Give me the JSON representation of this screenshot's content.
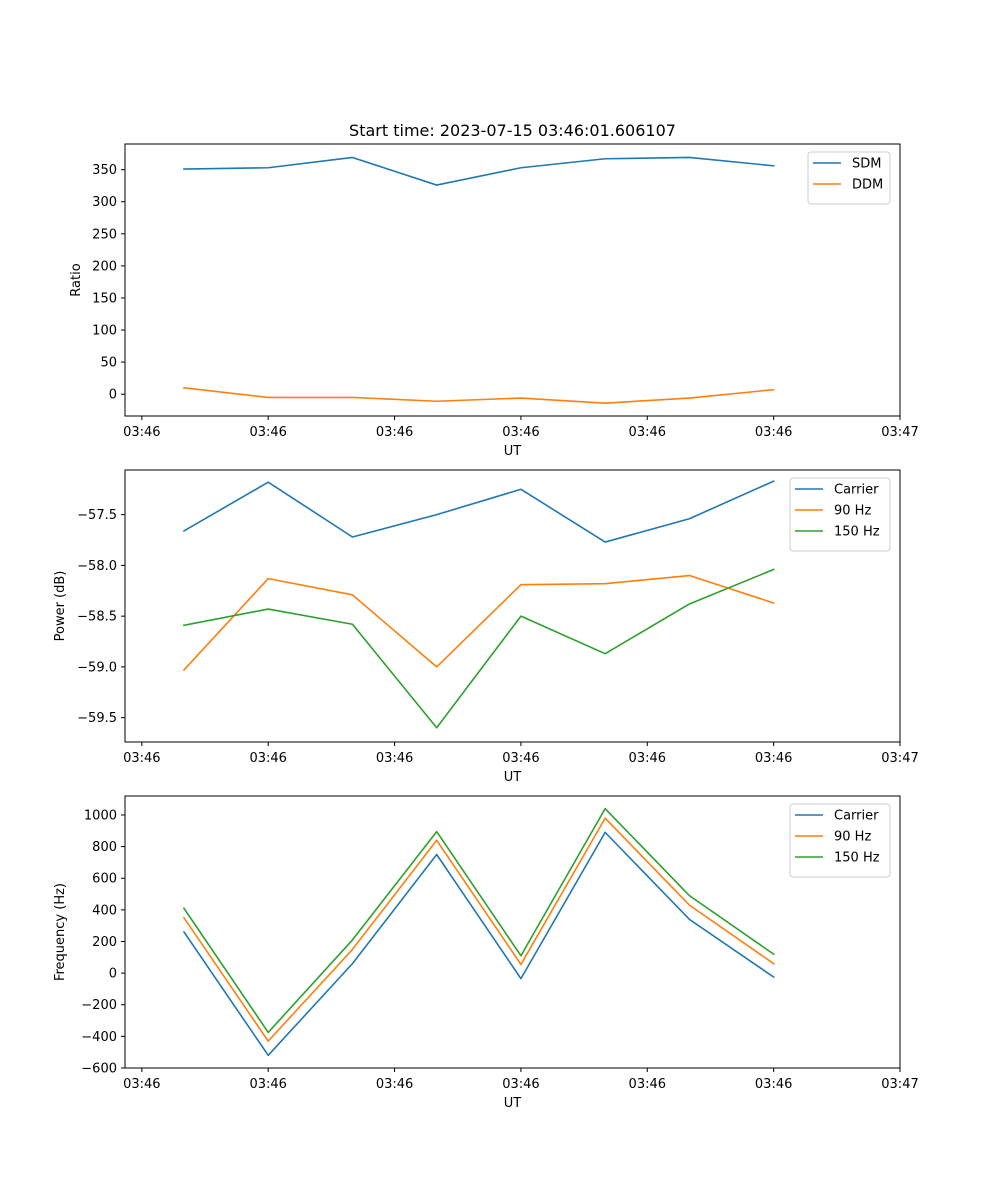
{
  "title": "Start time: 2023-07-15 03:46:01.606107",
  "chart_data": [
    {
      "type": "line",
      "title": "Start time: 2023-07-15 03:46:01.606107",
      "xlabel": "UT",
      "ylabel": "Ratio",
      "x": [
        1,
        2,
        3,
        4,
        5,
        6,
        7,
        8
      ],
      "xlim": [
        0.3,
        9.5
      ],
      "xticks": [
        0.5,
        2,
        3.5,
        5,
        6.5,
        8,
        9.5
      ],
      "xticklabels": [
        "03:46",
        "03:46",
        "03:46",
        "03:46",
        "03:46",
        "03:46",
        "03:47"
      ],
      "ylim": [
        -34,
        390
      ],
      "yticks": [
        0,
        50,
        100,
        150,
        200,
        250,
        300,
        350
      ],
      "yticklabels": [
        "0",
        "50",
        "100",
        "150",
        "200",
        "250",
        "300",
        "350"
      ],
      "legend_position": "top-right",
      "series": [
        {
          "name": "SDM",
          "color": "#1f77b4",
          "values": [
            351,
            353,
            369,
            326,
            353,
            367,
            369,
            356
          ]
        },
        {
          "name": "DDM",
          "color": "#ff7f0e",
          "values": [
            10,
            -5,
            -5,
            -11,
            -6,
            -14,
            -6,
            7
          ]
        }
      ]
    },
    {
      "type": "line",
      "xlabel": "UT",
      "ylabel": "Power (dB)",
      "x": [
        1,
        2,
        3,
        4,
        5,
        6,
        7,
        8
      ],
      "xlim": [
        0.3,
        9.5
      ],
      "xticks": [
        0.5,
        2,
        3.5,
        5,
        6.5,
        8,
        9.5
      ],
      "xticklabels": [
        "03:46",
        "03:46",
        "03:46",
        "03:46",
        "03:46",
        "03:46",
        "03:47"
      ],
      "ylim": [
        -59.74,
        -57.06
      ],
      "yticks": [
        -59.5,
        -59.0,
        -58.5,
        -58.0,
        -57.5
      ],
      "yticklabels": [
        "−59.5",
        "−59.0",
        "−58.5",
        "−58.0",
        "−57.5"
      ],
      "legend_position": "top-right",
      "series": [
        {
          "name": "Carrier",
          "color": "#1f77b4",
          "values": [
            -57.66,
            -57.18,
            -57.72,
            -57.5,
            -57.25,
            -57.77,
            -57.54,
            -57.17
          ]
        },
        {
          "name": "90 Hz",
          "color": "#ff7f0e",
          "values": [
            -59.03,
            -58.13,
            -58.29,
            -59.0,
            -58.19,
            -58.18,
            -58.1,
            -58.37
          ]
        },
        {
          "name": "150 Hz",
          "color": "#2ca02c",
          "values": [
            -58.59,
            -58.43,
            -58.58,
            -59.6,
            -58.5,
            -58.87,
            -58.38,
            -58.04
          ]
        }
      ]
    },
    {
      "type": "line",
      "xlabel": "UT",
      "ylabel": "Frequency (Hz)",
      "x": [
        1,
        2,
        3,
        4,
        5,
        6,
        7,
        8
      ],
      "xlim": [
        0.3,
        9.5
      ],
      "xticks": [
        0.5,
        2,
        3.5,
        5,
        6.5,
        8,
        9.5
      ],
      "xticklabels": [
        "03:46",
        "03:46",
        "03:46",
        "03:46",
        "03:46",
        "03:46",
        "03:47"
      ],
      "ylim": [
        -600,
        1120
      ],
      "yticks": [
        -600,
        -400,
        -200,
        0,
        200,
        400,
        600,
        800,
        1000
      ],
      "yticklabels": [
        "−600",
        "−400",
        "−200",
        "0",
        "200",
        "400",
        "600",
        "800",
        "1000"
      ],
      "legend_position": "top-right",
      "series": [
        {
          "name": "Carrier",
          "color": "#1f77b4",
          "values": [
            260,
            -520,
            60,
            750,
            -35,
            890,
            340,
            -25
          ]
        },
        {
          "name": "90 Hz",
          "color": "#ff7f0e",
          "values": [
            350,
            -430,
            150,
            840,
            55,
            980,
            430,
            60
          ]
        },
        {
          "name": "150 Hz",
          "color": "#2ca02c",
          "values": [
            410,
            -375,
            210,
            895,
            110,
            1040,
            490,
            120
          ]
        }
      ]
    }
  ]
}
